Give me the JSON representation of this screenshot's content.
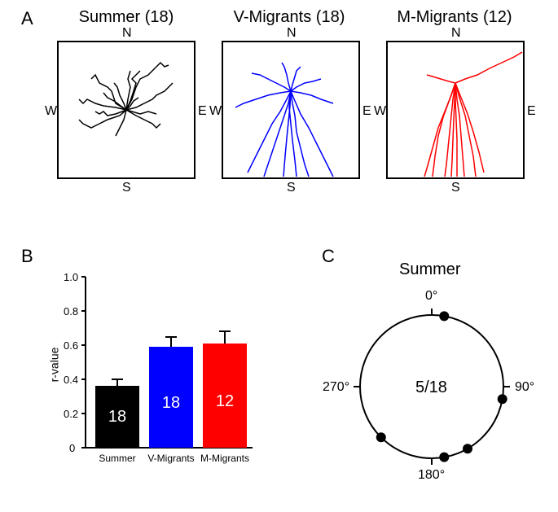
{
  "panelA": {
    "label": "A",
    "tracks": [
      {
        "title": "Summer (18)",
        "color": "#000000"
      },
      {
        "title": "V-Migrants (18)",
        "color": "#0000ff"
      },
      {
        "title": "M-Migrants (12)",
        "color": "#ff0000"
      }
    ],
    "compass": {
      "N": "N",
      "S": "S",
      "E": "E",
      "W": "W"
    }
  },
  "panelB": {
    "label": "B",
    "ylabel": "r-value",
    "ylim": [
      0,
      1.0
    ],
    "ytick_step": 0.2,
    "yticks": [
      "0",
      "0.2",
      "0.4",
      "0.6",
      "0.8",
      "1.0"
    ],
    "bars": [
      {
        "label": "Summer",
        "value": 0.36,
        "error": 0.04,
        "n": "18",
        "color": "#000000"
      },
      {
        "label": "V-Migrants",
        "value": 0.59,
        "error": 0.06,
        "n": "18",
        "color": "#0000ff"
      },
      {
        "label": "M-Migrants",
        "value": 0.61,
        "error": 0.07,
        "n": "12",
        "color": "#ff0000"
      }
    ]
  },
  "panelC": {
    "label": "C",
    "title": "Summer",
    "center_text": "5/18",
    "degrees": [
      "0°",
      "90°",
      "180°",
      "270°"
    ],
    "points": [
      10,
      100,
      150,
      170,
      225
    ],
    "circle_color": "#000000",
    "point_color": "#000000"
  }
}
